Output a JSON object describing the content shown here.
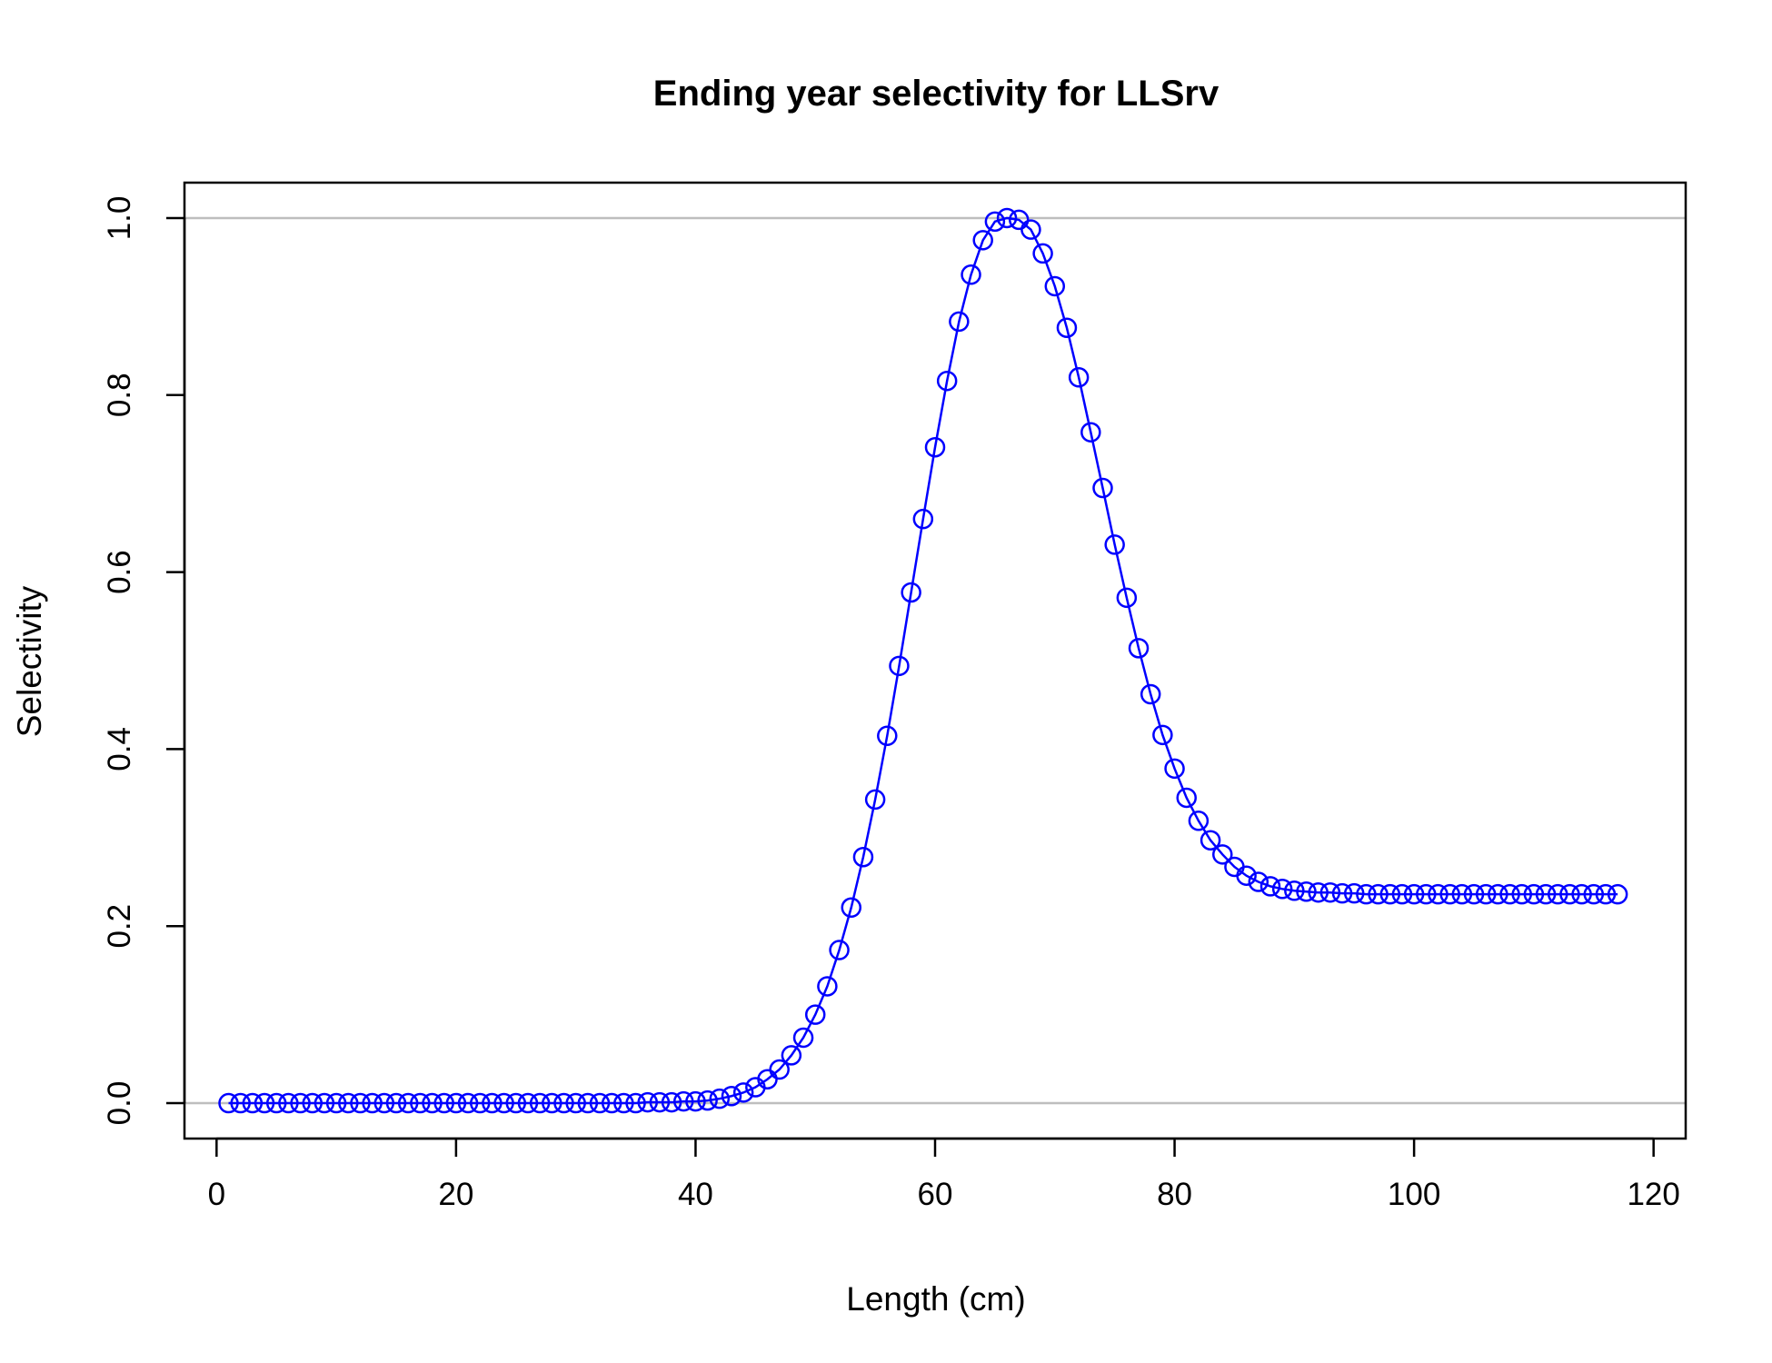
{
  "chart_data": {
    "type": "line",
    "title": "Ending year selectivity for LLSrv",
    "xlabel": "Length (cm)",
    "ylabel": "Selectivity",
    "xlim": [
      -2.68,
      122.68
    ],
    "ylim": [
      -0.04,
      1.04
    ],
    "x_ticks": [
      "0",
      "20",
      "40",
      "60",
      "80",
      "100",
      "120"
    ],
    "y_ticks": [
      "0.0",
      "0.2",
      "0.4",
      "0.6",
      "0.8",
      "1.0"
    ],
    "reference_lines": [
      0,
      1
    ],
    "grid": false,
    "legend": "none",
    "series": [
      {
        "color": "#0000ff",
        "marker": "open-circle",
        "x": [
          1,
          2,
          3,
          4,
          5,
          6,
          7,
          8,
          9,
          10,
          11,
          12,
          13,
          14,
          15,
          16,
          17,
          18,
          19,
          20,
          21,
          22,
          23,
          24,
          25,
          26,
          27,
          28,
          29,
          30,
          31,
          32,
          33,
          34,
          35,
          36,
          37,
          38,
          39,
          40,
          41,
          42,
          43,
          44,
          45,
          46,
          47,
          48,
          49,
          50,
          51,
          52,
          53,
          54,
          55,
          56,
          57,
          58,
          59,
          60,
          61,
          62,
          63,
          64,
          65,
          66,
          67,
          68,
          69,
          70,
          71,
          72,
          73,
          74,
          75,
          76,
          77,
          78,
          79,
          80,
          81,
          82,
          83,
          84,
          85,
          86,
          87,
          88,
          89,
          90,
          91,
          92,
          93,
          94,
          95,
          96,
          97,
          98,
          99,
          100,
          101,
          102,
          103,
          104,
          105,
          106,
          107,
          108,
          109,
          110,
          111,
          112,
          113,
          114,
          115,
          116,
          117
        ],
        "y": [
          0,
          0,
          0,
          0,
          0,
          0,
          0,
          0,
          0,
          0,
          0,
          0,
          0,
          0,
          0,
          0,
          0,
          0,
          0,
          0,
          0,
          0,
          0,
          0,
          0,
          0,
          0,
          0,
          0,
          0,
          0,
          0,
          0,
          0,
          0,
          0.001,
          0.001,
          0.001,
          0.002,
          0.002,
          0.003,
          0.005,
          0.008,
          0.012,
          0.018,
          0.027,
          0.038,
          0.054,
          0.074,
          0.1,
          0.132,
          0.173,
          0.221,
          0.278,
          0.343,
          0.415,
          0.494,
          0.577,
          0.66,
          0.741,
          0.816,
          0.883,
          0.936,
          0.975,
          0.996,
          1.0,
          0.998,
          0.987,
          0.96,
          0.923,
          0.876,
          0.82,
          0.758,
          0.695,
          0.631,
          0.571,
          0.514,
          0.462,
          0.416,
          0.378,
          0.345,
          0.319,
          0.297,
          0.281,
          0.267,
          0.257,
          0.25,
          0.245,
          0.242,
          0.24,
          0.239,
          0.238,
          0.238,
          0.237,
          0.237,
          0.236,
          0.236,
          0.236,
          0.236,
          0.236,
          0.236,
          0.236,
          0.236,
          0.236,
          0.236,
          0.236,
          0.236,
          0.236,
          0.236,
          0.236,
          0.236,
          0.236,
          0.236,
          0.236,
          0.236,
          0.236,
          0.236
        ]
      }
    ]
  }
}
